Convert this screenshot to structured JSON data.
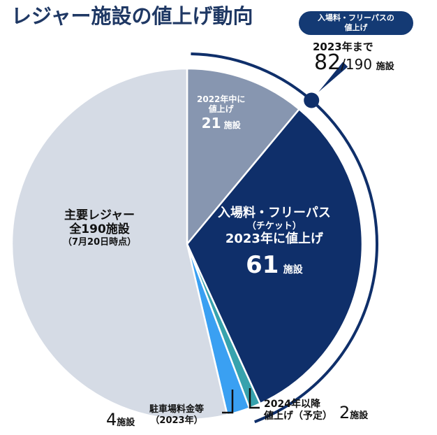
{
  "title": "レジャー施設の値上げ動向",
  "badge": {
    "line1": "入場料・フリーパスの",
    "line2": "値上げ"
  },
  "callout": {
    "prefix": "2023年まで",
    "count": "82",
    "total": "/190",
    "unit": "施設"
  },
  "center_label": {
    "line1": "主要レジャー",
    "line2": "全190施設",
    "line3": "（7月20日時点）"
  },
  "chart_data": {
    "type": "pie",
    "start": "top",
    "direction": "clockwise",
    "total": 190,
    "slices": [
      {
        "label_lines": [
          "2022年中に",
          "値上げ"
        ],
        "value": 21,
        "value_label": "21",
        "unit": "施設",
        "color": "#8796b0"
      },
      {
        "label_lines": [
          "入場料・フリーパス",
          "（チケット）",
          "2023年に値上げ"
        ],
        "value": 61,
        "value_label": "61",
        "unit": "施設",
        "color": "#0f2f6a"
      },
      {
        "label_lines": [
          "2024年以降",
          "値上げ（予定）"
        ],
        "value": 2,
        "value_label": "2",
        "unit": "施設",
        "color": "#37a2ad"
      },
      {
        "label_lines": [
          "駐車場料金等",
          "（2023年）"
        ],
        "value": 4,
        "value_label": "4",
        "unit": "施設",
        "color": "#3aa0f2"
      },
      {
        "label_lines": [],
        "value": 102,
        "color": "#d5dbe5"
      }
    ]
  }
}
